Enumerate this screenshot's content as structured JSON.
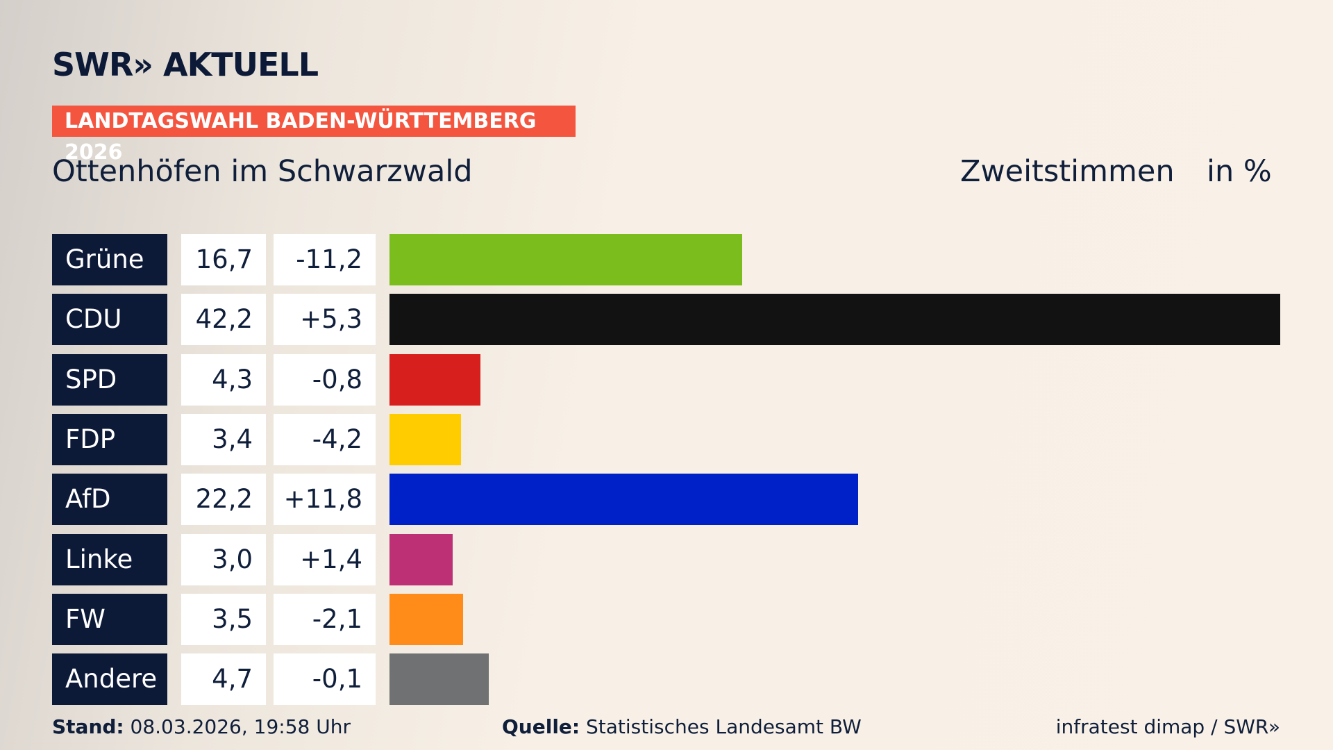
{
  "header": {
    "logo": "SWR» AKTUELL",
    "badge": "LANDTAGSWAHL BADEN-WÜRTTEMBERG 2026"
  },
  "chart_data": {
    "type": "bar",
    "orientation": "horizontal",
    "title": "Ottenhöfen im Schwarzwald",
    "subtitle": "Zweitstimmen",
    "unit": "in %",
    "categories": [
      "Grüne",
      "CDU",
      "SPD",
      "FDP",
      "AfD",
      "Linke",
      "FW",
      "Andere"
    ],
    "values": [
      16.7,
      42.2,
      4.3,
      3.4,
      22.2,
      3.0,
      3.5,
      4.7
    ],
    "value_labels": [
      "16,7",
      "42,2",
      "4,3",
      "3,4",
      "22,2",
      "3,0",
      "3,5",
      "4,7"
    ],
    "changes": [
      -11.2,
      5.3,
      -0.8,
      -4.2,
      11.8,
      1.4,
      -2.1,
      -0.1
    ],
    "change_labels": [
      "-11,2",
      "+5,3",
      "-0,8",
      "-4,2",
      "+11,8",
      "+1,4",
      "-2,1",
      "-0,1"
    ],
    "colors": [
      "#7bbd1d",
      "#121212",
      "#d71f1d",
      "#ffcc00",
      "#0021c8",
      "#be3075",
      "#ff8c19",
      "#707173"
    ]
  },
  "footer": {
    "date_label": "Stand:",
    "date": "08.03.2026, 19:58 Uhr",
    "source_label": "Quelle:",
    "source": "Statistisches Landesamt BW",
    "credit": "infratest dimap / SWR»"
  }
}
